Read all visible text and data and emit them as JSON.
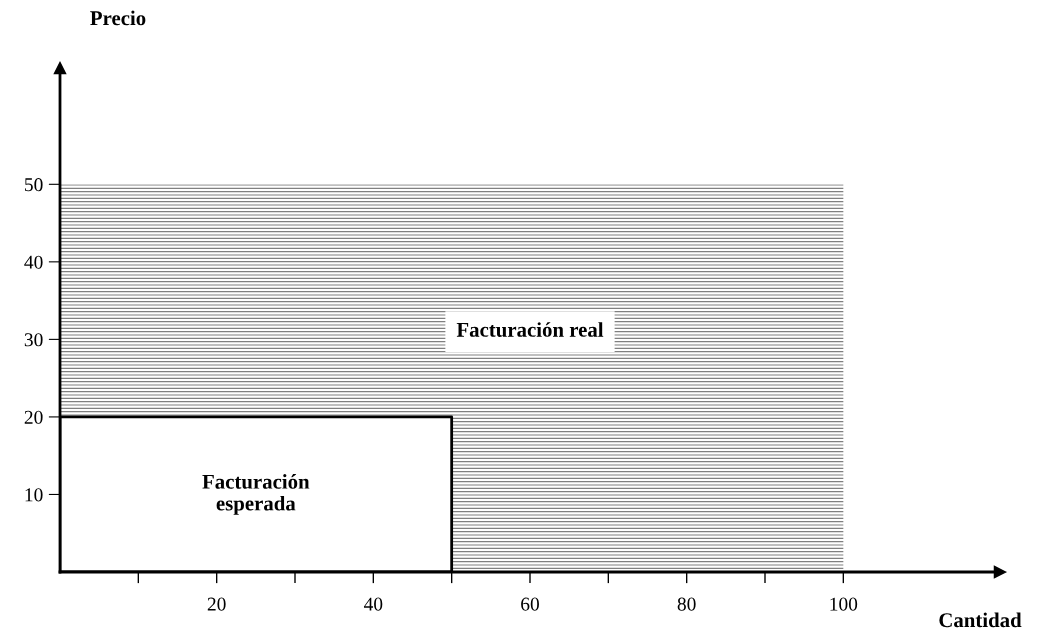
{
  "chart_data": {
    "type": "area",
    "xlabel": "Cantidad",
    "ylabel": "Precio",
    "xlim": [
      0,
      120
    ],
    "ylim": [
      0,
      65
    ],
    "xticks": [
      {
        "value": 10,
        "label": null
      },
      20,
      {
        "value": 30,
        "label": null
      },
      40,
      {
        "value": 50,
        "label": null
      },
      60,
      {
        "value": 70,
        "label": null
      },
      80,
      {
        "value": 90,
        "label": null
      },
      100
    ],
    "yticks": [
      10,
      20,
      30,
      40,
      50
    ],
    "grid": false,
    "legend": false,
    "series": [
      {
        "name": "Facturación real",
        "color": "#808080",
        "x": [
          0,
          100
        ],
        "values": [
          50,
          50
        ]
      },
      {
        "name": "Facturación\nesperada",
        "color": "#ffffff",
        "x": [
          0,
          50
        ],
        "values": [
          20,
          20
        ]
      }
    ]
  }
}
